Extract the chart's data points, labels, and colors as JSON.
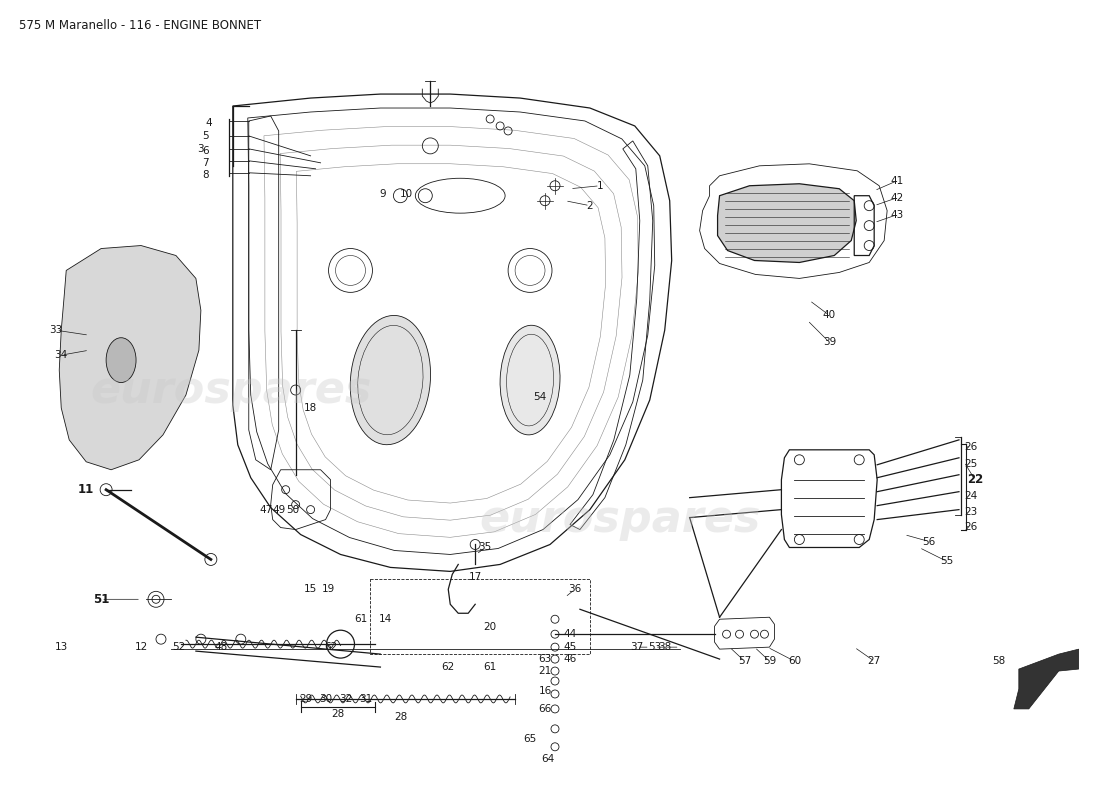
{
  "title": "575 M Maranello - 116 - ENGINE BONNET",
  "title_fontsize": 8.5,
  "bg_color": "#ffffff",
  "line_color": "#1a1a1a",
  "label_fontsize": 7.5,
  "label_fontsize_bold": 8.5
}
